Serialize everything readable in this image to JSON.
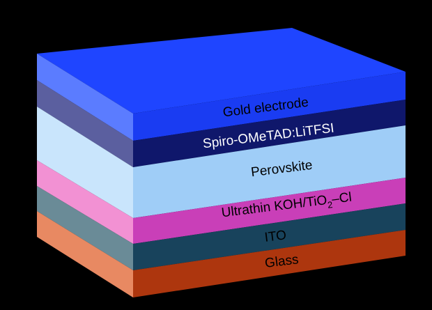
{
  "diagram": {
    "layers": [
      {
        "id": "gold",
        "label": "Gold electrode",
        "front": "#1a3cf2",
        "side": "#5b7cff",
        "text_color": "#000000"
      },
      {
        "id": "spiro",
        "label": "Spiro-OMeTAD:LiTFSI",
        "front": "#0f176b",
        "side": "#5b5f9f",
        "text_color": "#ffffff"
      },
      {
        "id": "perovskite",
        "label": "Perovskite",
        "front": "#9fcdf7",
        "side": "#c9e5fc",
        "text_color": "#000000"
      },
      {
        "id": "koh",
        "label": "Ultrathin KOH/TiO",
        "label_sub": "2",
        "label_suffix": "–Cl",
        "front": "#c93fb8",
        "side": "#f291d3",
        "text_color": "#000000"
      },
      {
        "id": "ito",
        "label": "ITO",
        "front": "#18435c",
        "side": "#6a8b97",
        "text_color": "#000000"
      },
      {
        "id": "glass",
        "label": "Glass",
        "front": "#ad360e",
        "side": "#e88962",
        "text_color": "#000000"
      }
    ],
    "top_color": "#1f45ff",
    "background": "#000000"
  }
}
